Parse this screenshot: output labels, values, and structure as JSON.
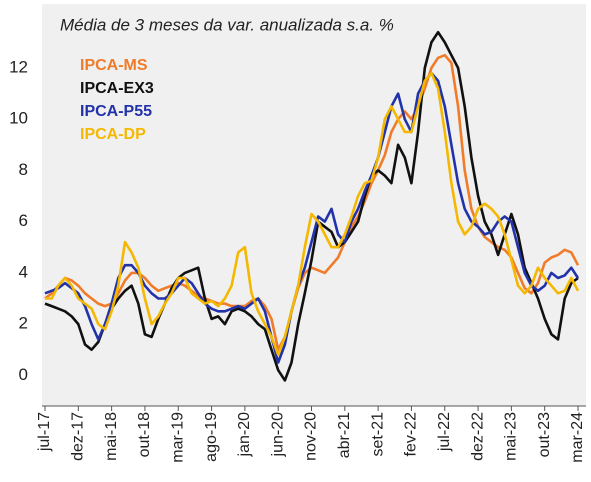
{
  "chart_data": {
    "type": "line",
    "title": "Média de 3 meses da var. anualizada s.a. %",
    "categories": [
      "jul-17",
      null,
      null,
      null,
      null,
      "dez-17",
      null,
      null,
      null,
      null,
      "mai-18",
      null,
      null,
      null,
      null,
      "out-18",
      null,
      null,
      null,
      null,
      "mar-19",
      null,
      null,
      null,
      null,
      "ago-19",
      null,
      null,
      null,
      null,
      "jan-20",
      null,
      null,
      null,
      null,
      "jun-20",
      null,
      null,
      null,
      null,
      "nov-20",
      null,
      null,
      null,
      null,
      "abr-21",
      null,
      null,
      null,
      null,
      "set-21",
      null,
      null,
      null,
      null,
      "fev-22",
      null,
      null,
      null,
      null,
      "jul-22",
      null,
      null,
      null,
      null,
      "dez-22",
      null,
      null,
      null,
      null,
      "mai-23",
      null,
      null,
      null,
      null,
      "out-23",
      null,
      null,
      null,
      null,
      "mar-24"
    ],
    "series": [
      {
        "name": "IPCA-MS",
        "color": "#f07c2a",
        "values": [
          3.0,
          3.2,
          3.5,
          3.8,
          3.7,
          3.5,
          3.2,
          3.0,
          2.8,
          2.7,
          2.8,
          3.2,
          3.7,
          4.0,
          4.0,
          3.8,
          3.5,
          3.3,
          3.4,
          3.5,
          3.6,
          3.5,
          3.3,
          3.1,
          3.0,
          2.9,
          2.8,
          2.8,
          2.7,
          2.7,
          2.7,
          2.9,
          3.0,
          2.7,
          2.2,
          1.0,
          1.5,
          2.5,
          3.4,
          4.0,
          4.2,
          4.1,
          4.0,
          4.3,
          4.6,
          5.2,
          5.8,
          6.2,
          6.8,
          7.5,
          8.0,
          8.6,
          9.5,
          10.0,
          10.3,
          10.0,
          10.5,
          11.2,
          12.0,
          12.4,
          12.5,
          12.2,
          10.5,
          8.0,
          6.5,
          5.8,
          5.4,
          5.2,
          5.0,
          4.9,
          4.6,
          4.0,
          3.4,
          3.2,
          3.6,
          4.4,
          4.6,
          4.7,
          4.9,
          4.8,
          4.3
        ]
      },
      {
        "name": "IPCA-EX3",
        "color": "#111111",
        "values": [
          2.8,
          2.7,
          2.6,
          2.5,
          2.3,
          2.0,
          1.2,
          1.0,
          1.3,
          2.0,
          2.6,
          3.0,
          3.3,
          3.5,
          2.8,
          1.6,
          1.5,
          2.2,
          2.8,
          3.4,
          3.8,
          4.0,
          4.1,
          4.2,
          3.0,
          2.2,
          2.3,
          2.0,
          2.5,
          2.6,
          2.5,
          2.3,
          2.0,
          1.8,
          1.0,
          0.2,
          -0.2,
          0.5,
          2.0,
          3.2,
          4.5,
          6.0,
          5.8,
          5.6,
          5.0,
          5.2,
          5.6,
          6.0,
          7.0,
          7.8,
          8.0,
          7.8,
          7.5,
          9.0,
          8.5,
          7.5,
          9.5,
          12.0,
          13.0,
          13.4,
          13.0,
          12.5,
          12.0,
          10.5,
          8.5,
          7.0,
          6.0,
          5.5,
          4.7,
          5.5,
          6.3,
          5.5,
          4.2,
          3.6,
          3.0,
          2.2,
          1.6,
          1.4,
          3.0,
          3.6,
          3.8
        ]
      },
      {
        "name": "IPCA-P55",
        "color": "#2233aa",
        "values": [
          3.2,
          3.3,
          3.4,
          3.6,
          3.4,
          3.2,
          2.7,
          2.0,
          1.4,
          2.0,
          2.8,
          3.8,
          4.3,
          4.3,
          4.0,
          3.5,
          3.2,
          3.0,
          3.0,
          3.2,
          3.5,
          3.8,
          3.6,
          3.2,
          2.8,
          2.6,
          2.5,
          2.5,
          2.6,
          2.7,
          2.6,
          2.8,
          3.0,
          2.5,
          1.5,
          0.5,
          1.2,
          2.5,
          3.5,
          4.2,
          5.2,
          6.2,
          6.0,
          6.5,
          5.5,
          5.2,
          6.0,
          6.5,
          7.2,
          7.8,
          8.5,
          9.5,
          10.5,
          11.0,
          10.0,
          9.5,
          11.0,
          11.5,
          11.8,
          11.5,
          10.5,
          9.0,
          7.5,
          6.5,
          6.0,
          5.8,
          5.5,
          5.6,
          6.0,
          6.2,
          6.0,
          5.0,
          4.0,
          3.5,
          3.3,
          3.5,
          4.0,
          3.8,
          3.9,
          4.2,
          3.8
        ]
      },
      {
        "name": "IPCA-DP",
        "color": "#f5b800",
        "values": [
          3.0,
          3.0,
          3.5,
          3.8,
          3.5,
          3.0,
          2.8,
          2.6,
          2.0,
          1.8,
          2.5,
          3.5,
          5.2,
          4.8,
          4.2,
          3.0,
          2.0,
          2.3,
          2.8,
          3.2,
          3.8,
          3.8,
          3.2,
          3.0,
          2.8,
          2.9,
          2.7,
          3.0,
          3.5,
          4.8,
          5.0,
          3.2,
          2.5,
          2.0,
          1.5,
          0.8,
          1.5,
          2.5,
          3.5,
          5.0,
          6.3,
          6.0,
          5.5,
          5.0,
          5.0,
          5.5,
          6.2,
          7.0,
          7.5,
          7.6,
          8.5,
          10.0,
          10.5,
          10.0,
          9.5,
          9.5,
          10.5,
          11.5,
          11.8,
          11.2,
          9.5,
          7.5,
          6.0,
          5.5,
          5.8,
          6.5,
          6.7,
          6.5,
          6.2,
          5.5,
          4.5,
          3.5,
          3.2,
          3.5,
          4.2,
          3.8,
          3.5,
          3.2,
          3.3,
          3.8,
          3.3
        ]
      }
    ],
    "ylim": [
      -1.2,
      14.5
    ],
    "yticks": [
      0,
      2,
      4,
      6,
      8,
      10,
      12
    ]
  }
}
